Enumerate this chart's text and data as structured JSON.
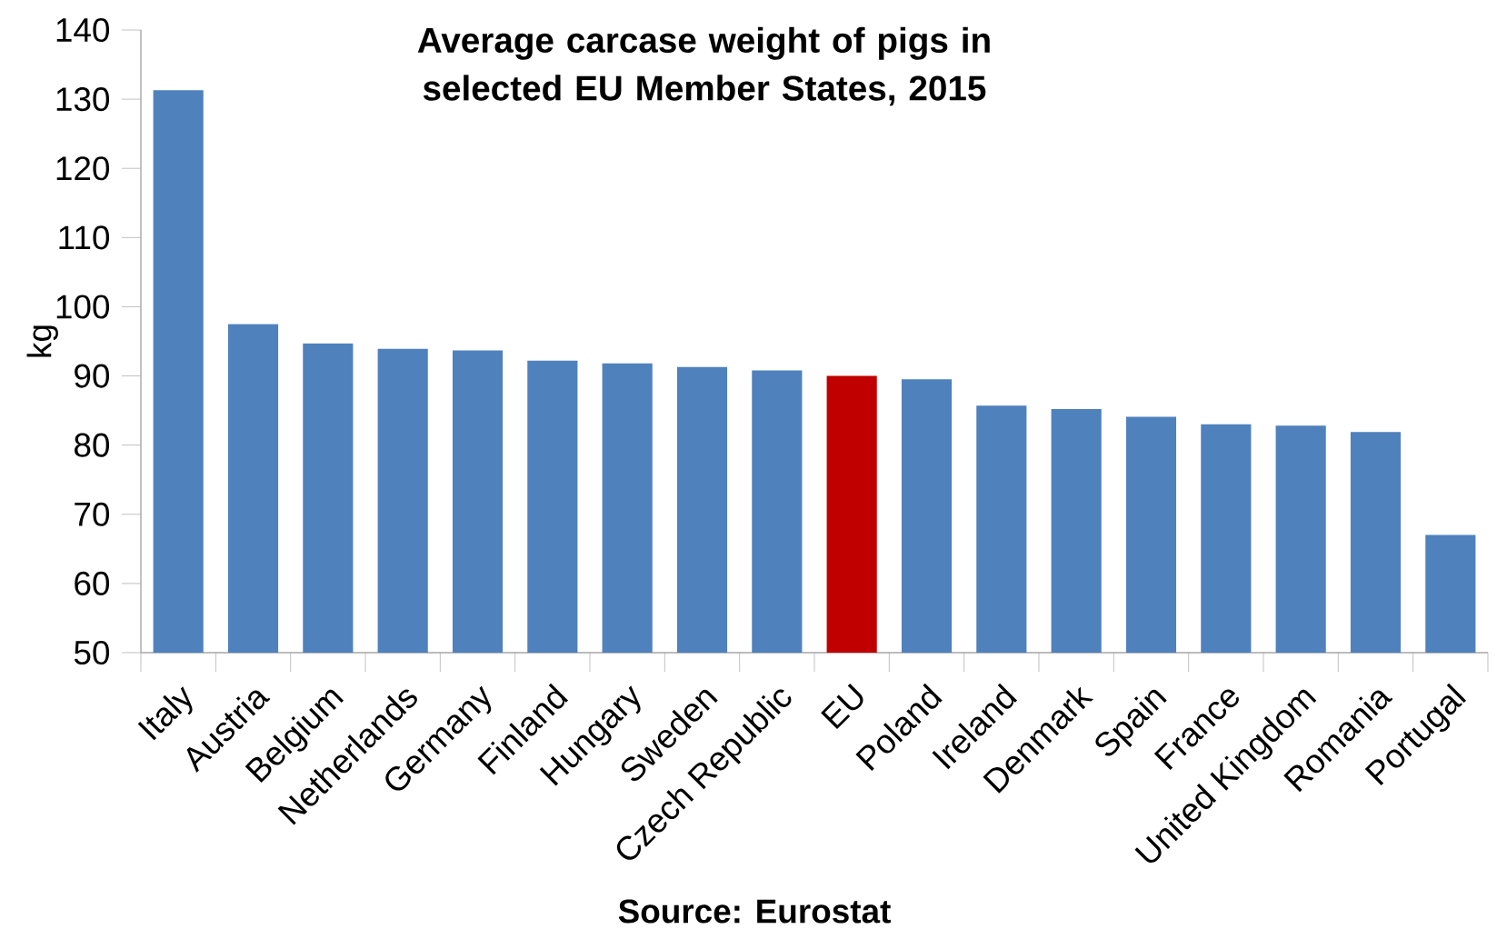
{
  "chart_data": {
    "type": "bar",
    "title": "Average carcase weight of pigs in selected EU Member States, 2015",
    "ylabel": "kg",
    "annotations": [
      "Source: Eurostat"
    ],
    "categories": [
      "Italy",
      "Austria",
      "Belgium",
      "Netherlands",
      "Germany",
      "Finland",
      "Hungary",
      "Sweden",
      "Czech Republic",
      "EU",
      "Poland",
      "Ireland",
      "Denmark",
      "Spain",
      "France",
      "United Kingdom",
      "Romania",
      "Portugal"
    ],
    "values": [
      131.3,
      97.5,
      94.7,
      93.9,
      93.7,
      92.2,
      91.8,
      91.3,
      90.8,
      90.0,
      89.5,
      85.7,
      85.2,
      84.1,
      83.0,
      82.8,
      81.9,
      67.0
    ],
    "colors": [
      "#4f81bd",
      "#4f81bd",
      "#4f81bd",
      "#4f81bd",
      "#4f81bd",
      "#4f81bd",
      "#4f81bd",
      "#4f81bd",
      "#4f81bd",
      "#c00000",
      "#4f81bd",
      "#4f81bd",
      "#4f81bd",
      "#4f81bd",
      "#4f81bd",
      "#4f81bd",
      "#4f81bd",
      "#4f81bd"
    ],
    "ylim": [
      50,
      140
    ],
    "yticks": [
      50,
      60,
      70,
      80,
      90,
      100,
      110,
      120,
      130,
      140
    ]
  }
}
